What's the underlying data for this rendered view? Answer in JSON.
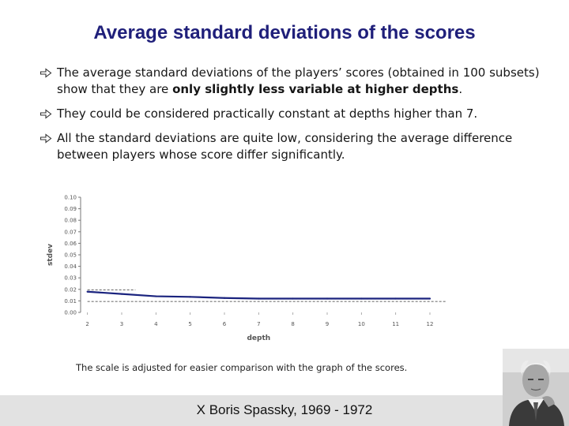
{
  "slide": {
    "title": "Average standard deviations of the scores",
    "bullets": [
      {
        "before": "The average standard deviations of the players’ scores (obtained in 100 subsets) show that they are ",
        "bold": "only slightly less variable at higher depths",
        "after": "."
      },
      {
        "text": "They could be considered practically constant at depths higher than 7."
      },
      {
        "text": "All the standard deviations are quite low, considering the average difference between players whose score differ significantly."
      }
    ],
    "note": "The scale is adjusted for easier comparison with the graph of the scores.",
    "footer": "X   Boris Spassky, 1969 - 1972",
    "colors": {
      "title": "#1f1f7a",
      "series": "#1a237e",
      "footer_bg": "#e2e2e2"
    }
  },
  "chart_data": {
    "type": "line",
    "xlabel": "depth",
    "ylabel": "stdev",
    "x": [
      2,
      3,
      4,
      5,
      6,
      7,
      8,
      9,
      10,
      11,
      12
    ],
    "xticks": [
      "2",
      "3",
      "4",
      "5",
      "6",
      "7",
      "8",
      "9",
      "10",
      "11",
      "12"
    ],
    "yticks": [
      "0.00",
      "0.01",
      "0.02",
      "0.03",
      "0.04",
      "0.05",
      "0.06",
      "0.07",
      "0.08",
      "0.09",
      "0.10"
    ],
    "ylim": [
      0,
      0.1
    ],
    "series": [
      {
        "values": [
          0.018,
          0.016,
          0.014,
          0.0135,
          0.0125,
          0.012,
          0.012,
          0.012,
          0.012,
          0.012,
          0.012
        ]
      }
    ],
    "reference_lines": [
      {
        "y": 0.0195,
        "x_range": [
          2,
          3.4
        ],
        "style": "dashed"
      },
      {
        "y": 0.0095,
        "x_range": [
          2,
          12.5
        ],
        "style": "dashed"
      }
    ],
    "grid": false
  }
}
